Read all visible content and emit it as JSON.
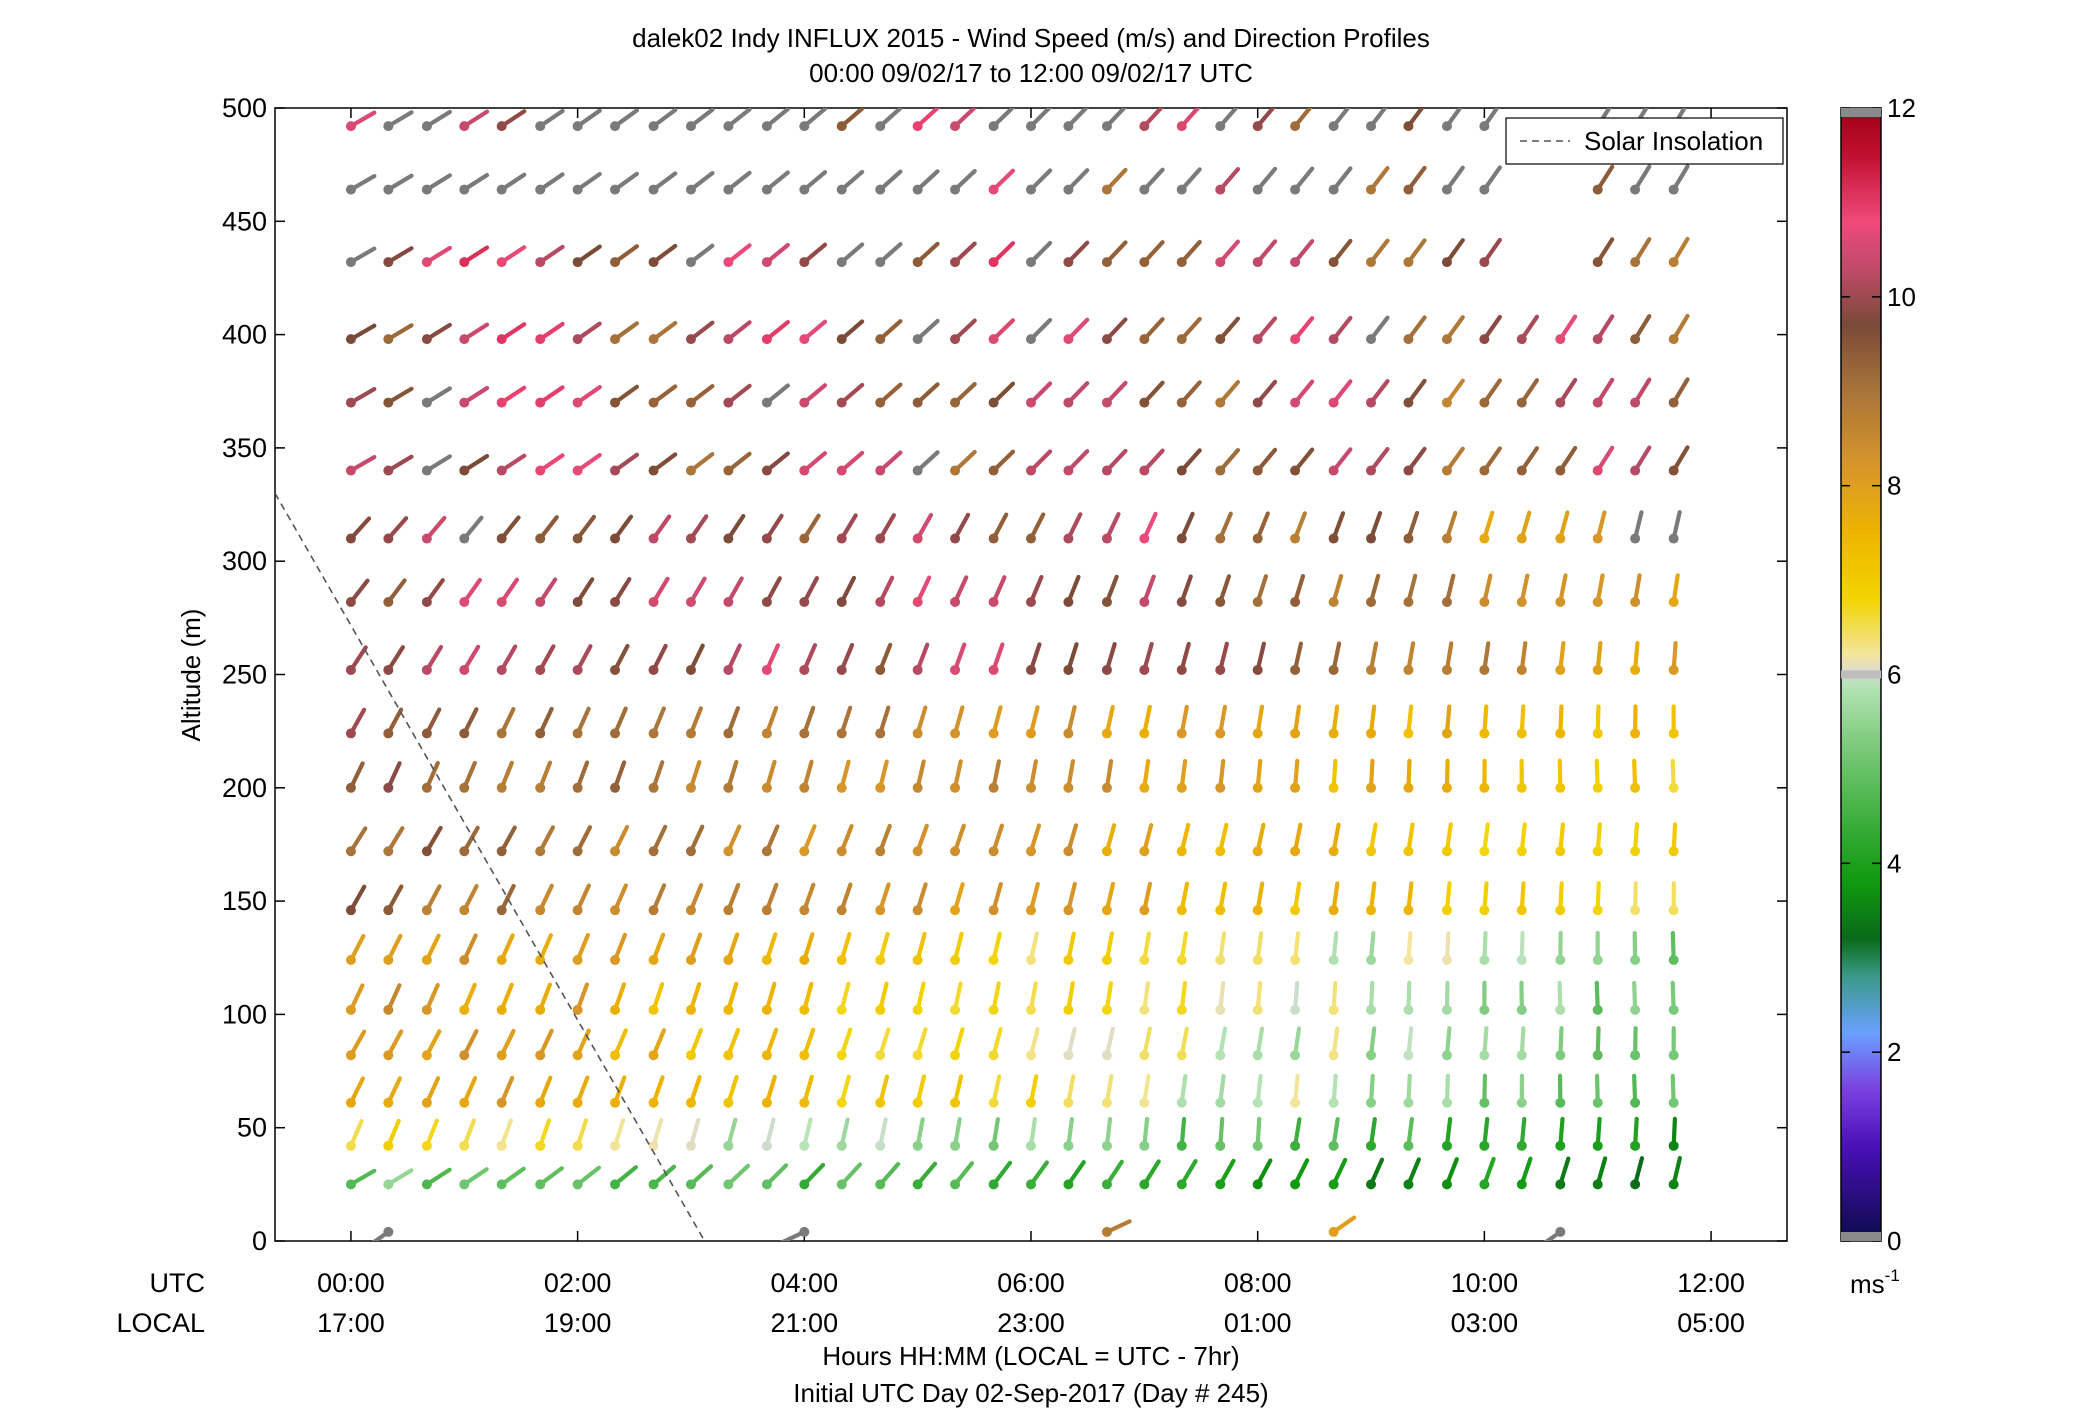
{
  "chart_data": {
    "type": "vector-field",
    "title": "dalek02 Indy INFLUX 2015 - Wind Speed (m/s) and Direction Profiles",
    "subtitle": "00:00 09/02/17 to 12:00 09/02/17  UTC",
    "ylabel": "Altitude (m)",
    "xlabel": "Hours HH:MM  (LOCAL = UTC - 7hr)",
    "footer": "Initial UTC Day 02-Sep-2017 (Day # 245)",
    "x_row_labels": {
      "utc": "UTC",
      "local": "LOCAL"
    },
    "xlim_hours": [
      -0.67,
      12.67
    ],
    "ylim": [
      0,
      500
    ],
    "y_ticks": [
      0,
      50,
      100,
      150,
      200,
      250,
      300,
      350,
      400,
      450,
      500
    ],
    "x_ticks": [
      {
        "utc": "00:00",
        "local": "17:00"
      },
      {
        "utc": "02:00",
        "local": "19:00"
      },
      {
        "utc": "04:00",
        "local": "21:00"
      },
      {
        "utc": "06:00",
        "local": "23:00"
      },
      {
        "utc": "08:00",
        "local": "01:00"
      },
      {
        "utc": "10:00",
        "local": "03:00"
      },
      {
        "utc": "12:00",
        "local": "05:00"
      }
    ],
    "legend": {
      "label": "Solar Insolation",
      "position": "top-right"
    },
    "solar_insolation_line": {
      "x": [
        -0.67,
        3.12
      ],
      "y": [
        330,
        0
      ]
    },
    "colorbar": {
      "range": [
        0,
        12
      ],
      "ticks": [
        0,
        2,
        4,
        6,
        8,
        10,
        12
      ],
      "unit_label": "ms",
      "unit_exp": "-1",
      "stops": [
        [
          0,
          "#0b0b4a"
        ],
        [
          1,
          "#4a10b8"
        ],
        [
          1.6,
          "#7a40e0"
        ],
        [
          2.2,
          "#6aa0ff"
        ],
        [
          2.8,
          "#3a9a8a"
        ],
        [
          3.2,
          "#0a6a1a"
        ],
        [
          3.8,
          "#109a10"
        ],
        [
          4.5,
          "#40b040"
        ],
        [
          5.3,
          "#80cc80"
        ],
        [
          5.9,
          "#b8e4b8"
        ],
        [
          6.0,
          "#d8d8d8"
        ],
        [
          6.2,
          "#f2e6a0"
        ],
        [
          6.8,
          "#f2d400"
        ],
        [
          7.5,
          "#eeb400"
        ],
        [
          8.2,
          "#d8962a"
        ],
        [
          9.0,
          "#a8743a"
        ],
        [
          9.7,
          "#7a4a38"
        ],
        [
          10.3,
          "#c04a6a"
        ],
        [
          10.8,
          "#f04a7a"
        ],
        [
          11.5,
          "#c01030"
        ],
        [
          12,
          "#a00018"
        ]
      ]
    },
    "vectors": {
      "description": "wind barbs: x in UTC hours, altitude in m, speed in m/s (gray = out-of-range/no speed), direction angle in degrees",
      "x_hours": [
        0.0,
        0.33,
        0.67,
        1.0,
        1.33,
        1.67,
        2.0,
        2.33,
        2.67,
        3.0,
        3.33,
        3.67,
        4.0,
        4.33,
        4.67,
        5.0,
        5.33,
        5.67,
        6.0,
        6.33,
        6.67,
        7.0,
        7.33,
        7.67,
        8.0,
        8.33,
        8.67,
        9.0,
        9.33,
        9.67,
        10.0,
        10.33,
        10.67,
        11.0,
        11.33,
        11.67
      ],
      "altitudes": [
        25,
        42,
        61,
        82,
        102,
        124,
        146,
        172,
        200,
        224,
        252,
        282,
        310,
        340,
        370,
        398,
        432,
        464,
        492
      ],
      "surface_barbs": [
        {
          "x": 0.33,
          "speed": null,
          "angle": -35
        },
        {
          "x": 4.0,
          "speed": null,
          "angle": -25
        },
        {
          "x": 6.67,
          "speed": 8.8,
          "angle": 25
        },
        {
          "x": 8.67,
          "speed": 8.0,
          "angle": 35
        },
        {
          "x": 10.67,
          "speed": null,
          "angle": -35
        }
      ]
    }
  }
}
